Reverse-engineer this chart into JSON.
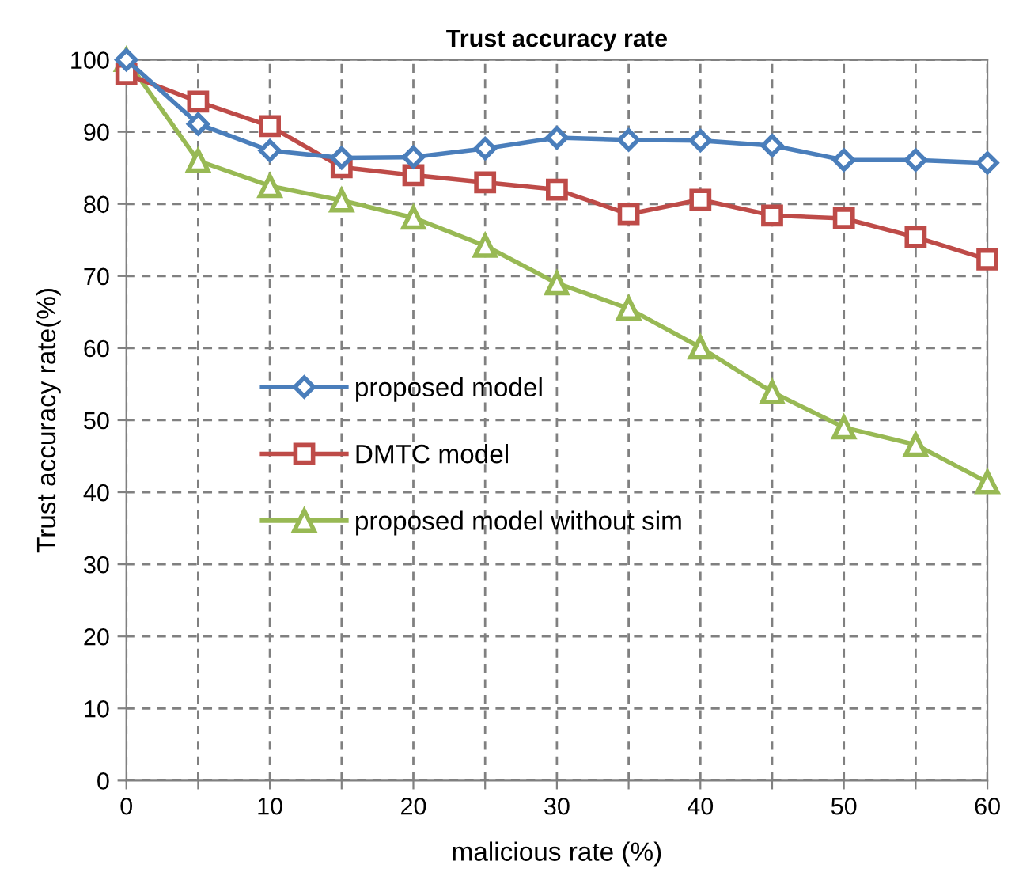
{
  "chart_data": {
    "type": "line",
    "title": "Trust accuracy rate",
    "xlabel": "malicious rate (%)",
    "ylabel": "Trust accuracy rate(%)",
    "x": [
      0,
      5,
      10,
      15,
      20,
      25,
      30,
      35,
      40,
      45,
      50,
      55,
      60
    ],
    "series": [
      {
        "name": "proposed model",
        "color": "#4a7ebb",
        "marker": "diamond",
        "values": [
          100,
          91.1,
          87.4,
          86.4,
          86.5,
          87.7,
          89.2,
          88.9,
          88.8,
          88.1,
          86.1,
          86.1,
          85.7
        ]
      },
      {
        "name": "DMTC model",
        "color": "#be4b48",
        "marker": "square",
        "values": [
          98,
          94.2,
          90.8,
          85.1,
          84.0,
          83.0,
          82.0,
          78.6,
          80.6,
          78.4,
          78.0,
          75.4,
          72.3
        ]
      },
      {
        "name": "proposed model without sim",
        "color": "#98b954",
        "marker": "triangle",
        "values": [
          100,
          86.0,
          82.5,
          80.5,
          78.1,
          74.2,
          69.0,
          65.5,
          60.1,
          53.9,
          49.0,
          46.6,
          41.4
        ]
      }
    ],
    "xlim": [
      0,
      60
    ],
    "xticks": [
      0,
      {
        "value": 5,
        "label": null
      },
      10,
      {
        "value": 15,
        "label": null
      },
      20,
      {
        "value": 25,
        "label": null
      },
      30,
      {
        "value": 35,
        "label": null
      },
      40,
      {
        "value": 45,
        "label": null
      },
      50,
      {
        "value": 55,
        "label": null
      },
      60
    ],
    "ylim": [
      0,
      100
    ],
    "yticks": [
      0,
      10,
      20,
      30,
      40,
      50,
      60,
      70,
      80,
      90,
      100
    ],
    "grid": true,
    "legend": "left",
    "line_style": "solid"
  }
}
